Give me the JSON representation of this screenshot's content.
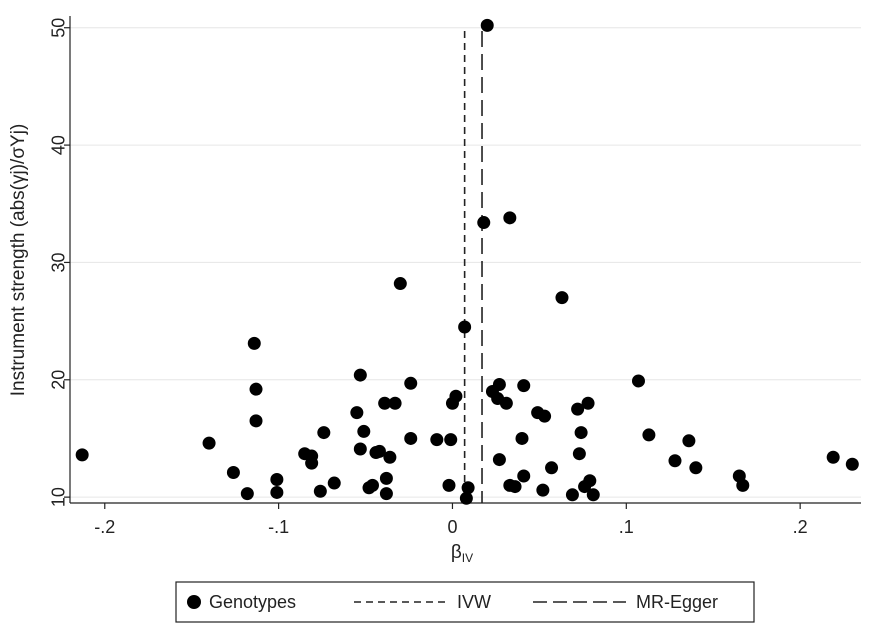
{
  "chart_data": {
    "type": "scatter",
    "title": "",
    "xlabel_main": "β",
    "xlabel_sub": "IV",
    "ylabel": "Instrument strength (abs(γj)/σYj)",
    "xlim": [
      -0.22,
      0.235
    ],
    "ylim": [
      9.5,
      51
    ],
    "x_ticks": [
      -0.2,
      -0.1,
      0,
      0.1,
      0.2
    ],
    "x_tick_labels": [
      "-.2",
      "-.1",
      "0",
      ".1",
      ".2"
    ],
    "y_ticks": [
      10,
      20,
      30,
      40,
      50
    ],
    "y_tick_labels": [
      "10",
      "20",
      "30",
      "40",
      "50"
    ],
    "grid": "horizontal",
    "legend_position": "bottom",
    "reference_lines": [
      {
        "name": "IVW",
        "x": 0.007,
        "style": "short-dash"
      },
      {
        "name": "MR-Egger",
        "x": 0.017,
        "style": "long-dash"
      }
    ],
    "series": [
      {
        "name": "Genotypes",
        "points": [
          [
            -0.213,
            13.6
          ],
          [
            -0.14,
            14.6
          ],
          [
            -0.126,
            12.1
          ],
          [
            -0.118,
            10.3
          ],
          [
            -0.114,
            23.1
          ],
          [
            -0.113,
            19.2
          ],
          [
            -0.113,
            16.5
          ],
          [
            -0.101,
            11.5
          ],
          [
            -0.101,
            10.4
          ],
          [
            -0.085,
            13.7
          ],
          [
            -0.081,
            13.5
          ],
          [
            -0.081,
            12.9
          ],
          [
            -0.076,
            10.5
          ],
          [
            -0.074,
            15.5
          ],
          [
            -0.068,
            11.2
          ],
          [
            -0.055,
            17.2
          ],
          [
            -0.053,
            20.4
          ],
          [
            -0.053,
            14.1
          ],
          [
            -0.051,
            15.6
          ],
          [
            -0.048,
            10.8
          ],
          [
            -0.046,
            11.0
          ],
          [
            -0.044,
            13.8
          ],
          [
            -0.042,
            13.9
          ],
          [
            -0.039,
            18.0
          ],
          [
            -0.038,
            11.6
          ],
          [
            -0.038,
            10.3
          ],
          [
            -0.036,
            13.4
          ],
          [
            -0.033,
            18.0
          ],
          [
            -0.03,
            28.2
          ],
          [
            -0.024,
            15.0
          ],
          [
            -0.024,
            19.7
          ],
          [
            -0.009,
            14.9
          ],
          [
            -0.001,
            14.9
          ],
          [
            0.0,
            18.0
          ],
          [
            0.002,
            18.6
          ],
          [
            -0.002,
            11.0
          ],
          [
            0.007,
            24.5
          ],
          [
            0.008,
            9.9
          ],
          [
            0.009,
            10.8
          ],
          [
            0.02,
            50.2
          ],
          [
            0.018,
            33.4
          ],
          [
            0.033,
            33.8
          ],
          [
            0.023,
            19.0
          ],
          [
            0.026,
            18.4
          ],
          [
            0.027,
            19.6
          ],
          [
            0.027,
            13.2
          ],
          [
            0.031,
            18.0
          ],
          [
            0.033,
            11.0
          ],
          [
            0.036,
            10.9
          ],
          [
            0.04,
            15.0
          ],
          [
            0.041,
            11.8
          ],
          [
            0.041,
            19.5
          ],
          [
            0.049,
            17.2
          ],
          [
            0.052,
            10.6
          ],
          [
            0.053,
            16.9
          ],
          [
            0.057,
            12.5
          ],
          [
            0.063,
            27.0
          ],
          [
            0.069,
            10.2
          ],
          [
            0.072,
            17.5
          ],
          [
            0.073,
            13.7
          ],
          [
            0.074,
            15.5
          ],
          [
            0.076,
            10.9
          ],
          [
            0.078,
            18.0
          ],
          [
            0.079,
            11.4
          ],
          [
            0.081,
            10.2
          ],
          [
            0.107,
            19.9
          ],
          [
            0.113,
            15.3
          ],
          [
            0.128,
            13.1
          ],
          [
            0.136,
            14.8
          ],
          [
            0.14,
            12.5
          ],
          [
            0.165,
            11.8
          ],
          [
            0.167,
            11.0
          ],
          [
            0.219,
            13.4
          ],
          [
            0.23,
            12.8
          ]
        ]
      }
    ],
    "legend": {
      "items": [
        {
          "label": "Genotypes",
          "marker": "dot"
        },
        {
          "label": "IVW",
          "marker": "short-dash"
        },
        {
          "label": "MR-Egger",
          "marker": "long-dash"
        }
      ]
    }
  }
}
